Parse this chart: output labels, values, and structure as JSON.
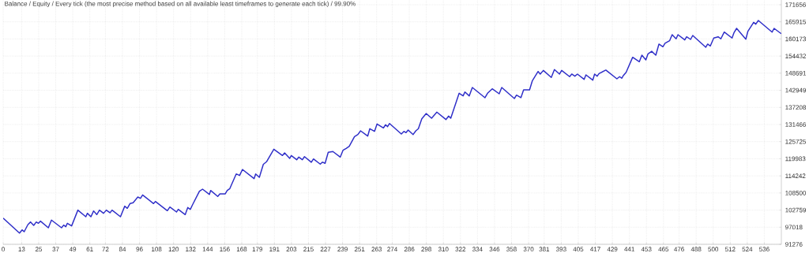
{
  "chart_data": {
    "type": "line",
    "title": "Balance / Equity / Every tick (the most precise method based on all available least timeframes to generate each tick) / 99.90%",
    "color": "#2e2ec8",
    "grid": true,
    "xlim": [
      0,
      548
    ],
    "ylim": [
      91276,
      173240
    ],
    "xticks": [
      0,
      13,
      25,
      37,
      49,
      61,
      72,
      84,
      96,
      108,
      120,
      132,
      144,
      156,
      168,
      179,
      191,
      203,
      215,
      227,
      239,
      251,
      263,
      274,
      286,
      298,
      310,
      322,
      334,
      346,
      358,
      370,
      381,
      393,
      405,
      417,
      429,
      441,
      453,
      465,
      476,
      488,
      500,
      512,
      524,
      536
    ],
    "yticks": [
      91276,
      97018,
      102759,
      108500,
      114242,
      119983,
      125725,
      131466,
      137208,
      142949,
      148691,
      154432,
      160173,
      165915,
      171656
    ],
    "x": [
      0,
      11.5,
      13.3,
      14.8,
      17.4,
      19.3,
      21.5,
      23.3,
      24.8,
      26.3,
      31.8,
      34,
      41.1,
      42.6,
      44.1,
      45.2,
      48.2,
      52.6,
      58.2,
      59.3,
      61.8,
      63.7,
      65.9,
      67.8,
      70.7,
      72.6,
      75.2,
      76.7,
      82.6,
      85.6,
      87.4,
      89.3,
      91.5,
      94.8,
      96.7,
      98.2,
      105.9,
      107.2,
      115.6,
      117.4,
      122.1,
      123.3,
      128.2,
      130,
      131.8,
      133.3,
      138.2,
      140.4,
      145.2,
      146.1,
      151.1,
      152.6,
      156.3,
      157.8,
      159.6,
      164.1,
      166.5,
      168.5,
      176.7,
      177.8,
      180.4,
      183.2,
      185.6,
      190.6,
      196.7,
      198.2,
      201.8,
      202.9,
      206.7,
      208.2,
      210.7,
      212.2,
      217,
      218.5,
      223.3,
      224.8,
      226.7,
      228.9,
      232.2,
      237.4,
      239.3,
      241.5,
      243.7,
      247.4,
      249.8,
      251.7,
      256.7,
      258.2,
      261.5,
      263.3,
      267.8,
      269.3,
      270.7,
      272.1,
      280.4,
      282.2,
      283.7,
      285.2,
      288.7,
      290.6,
      292.4,
      294.8,
      297.9,
      301.7,
      305.4,
      311.8,
      313.7,
      315.2,
      321.1,
      323.9,
      325.2,
      328.2,
      330.4,
      339.3,
      341.1,
      344.4,
      349.3,
      351.1,
      360,
      361.5,
      364.6,
      366.5,
      370.7,
      372.6,
      376.7,
      378.2,
      380.4,
      386,
      388.2,
      391.8,
      393.3,
      398.9,
      400.4,
      402.6,
      404.4,
      409.1,
      410.4,
      415.2,
      416.5,
      418.3,
      419.6,
      424.4,
      432.2,
      434.1,
      435.6,
      436.8,
      438.7,
      443.3,
      448,
      449.8,
      452.6,
      454.1,
      456.7,
      459.6,
      461.8,
      464.6,
      466.1,
      469.3,
      471.1,
      473.9,
      475.2,
      480,
      481.3,
      484.1,
      485.6,
      494.8,
      496.1,
      498,
      500.4,
      503.5,
      505.4,
      507.8,
      513.3,
      514.6,
      516.5,
      523,
      524.4,
      528.5,
      530,
      531.8,
      541.5,
      542.9,
      547.9
    ],
    "values": [
      100080,
      95060,
      96120,
      95510,
      97890,
      98770,
      97630,
      98770,
      98330,
      99040,
      96830,
      99400,
      96830,
      97720,
      97190,
      98330,
      97450,
      102740,
      100530,
      101680,
      100530,
      102470,
      101240,
      102740,
      101680,
      102740,
      101860,
      102740,
      100530,
      104060,
      103350,
      104940,
      105210,
      107140,
      106700,
      107850,
      104940,
      105650,
      102560,
      103790,
      102120,
      103000,
      101240,
      103620,
      103000,
      104500,
      109080,
      109780,
      108010,
      109340,
      107320,
      108190,
      108190,
      109340,
      109960,
      114890,
      114370,
      116390,
      113310,
      114890,
      113750,
      118120,
      119040,
      123180,
      121070,
      121950,
      120100,
      121070,
      119650,
      120540,
      119650,
      120680,
      118800,
      119920,
      118170,
      118850,
      118430,
      122130,
      122400,
      120540,
      122820,
      123460,
      124140,
      127420,
      128110,
      129350,
      127580,
      130070,
      129170,
      131650,
      130330,
      131390,
      130750,
      131810,
      128290,
      129170,
      128740,
      129620,
      128110,
      129350,
      130070,
      133400,
      135170,
      133580,
      135620,
      133130,
      134300,
      133580,
      141960,
      141070,
      142390,
      141070,
      143890,
      140460,
      141960,
      143450,
      141780,
      143890,
      140190,
      141330,
      140460,
      143100,
      143100,
      146090,
      149260,
      148390,
      149610,
      147250,
      149900,
      148390,
      149610,
      147520,
      148390,
      147680,
      148390,
      146620,
      148130,
      146350,
      148390,
      147680,
      148560,
      149720,
      146800,
      147520,
      146990,
      147940,
      149000,
      154030,
      152540,
      154730,
      153150,
      155180,
      156020,
      154730,
      158440,
      157560,
      158700,
      159570,
      161610,
      160210,
      161610,
      159840,
      160890,
      160020,
      161340,
      157380,
      158440,
      157830,
      160470,
      160890,
      160210,
      162480,
      160470,
      162220,
      163720,
      160080,
      162670,
      165760,
      165130,
      166370,
      162480,
      163720,
      161950
    ]
  }
}
